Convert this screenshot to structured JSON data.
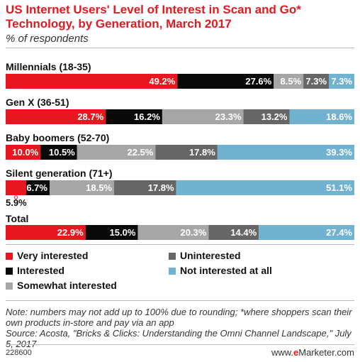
{
  "chart_data": {
    "type": "bar",
    "stacked": true,
    "orientation": "horizontal",
    "title": "US Internet Users' Level of Interest in Scan and Go* Technology, by Generation, March 2017",
    "subtitle": "% of respondents",
    "categories": [
      "Millennials (18-35)",
      "Gen X (36-51)",
      "Baby boomers (52-70)",
      "Silent generation (71+)",
      "Total"
    ],
    "series": [
      {
        "name": "Very interested",
        "color": "#e8161e",
        "values": [
          49.2,
          28.7,
          10.0,
          5.9,
          22.9
        ]
      },
      {
        "name": "Interested",
        "color": "#0a0a0a",
        "values": [
          27.6,
          16.2,
          10.5,
          6.7,
          15.0
        ]
      },
      {
        "name": "Somewhat interested",
        "color": "#a6a6a6",
        "values": [
          8.5,
          23.3,
          22.5,
          18.5,
          20.3
        ]
      },
      {
        "name": "Uninterested",
        "color": "#666666",
        "values": [
          7.3,
          13.2,
          17.8,
          17.8,
          14.4
        ]
      },
      {
        "name": "Not interested at all",
        "color": "#72b2d1",
        "values": [
          7.3,
          18.6,
          39.3,
          51.1,
          27.4
        ]
      }
    ],
    "value_labels": [
      [
        "49.2%",
        "27.6%",
        "8.5%",
        "7.3%",
        "7.3%"
      ],
      [
        "28.7%",
        "16.2%",
        "23.3%",
        "13.2%",
        "18.6%"
      ],
      [
        "10.0%",
        "10.5%",
        "22.5%",
        "17.8%",
        "39.3%"
      ],
      [
        "5.9%",
        "6.7%",
        "18.5%",
        "17.8%",
        "51.1%"
      ],
      [
        "22.9%",
        "15.0%",
        "20.3%",
        "14.4%",
        "27.4%"
      ]
    ],
    "xlim": [
      0,
      100
    ],
    "grid": false,
    "legend_position": "bottom"
  },
  "note": "Note: numbers may not add up to 100% due to rounding; *where shoppers scan their own products in-store and pay via an app",
  "source": "Source: Acosta, \"Bricks & Clicks: Understanding the Omni Channel Landscape,\" July 5, 2017",
  "footer": {
    "id": "228600",
    "brand_prefix": "www.",
    "brand_e": "e",
    "brand_rest": "Marketer.com"
  }
}
